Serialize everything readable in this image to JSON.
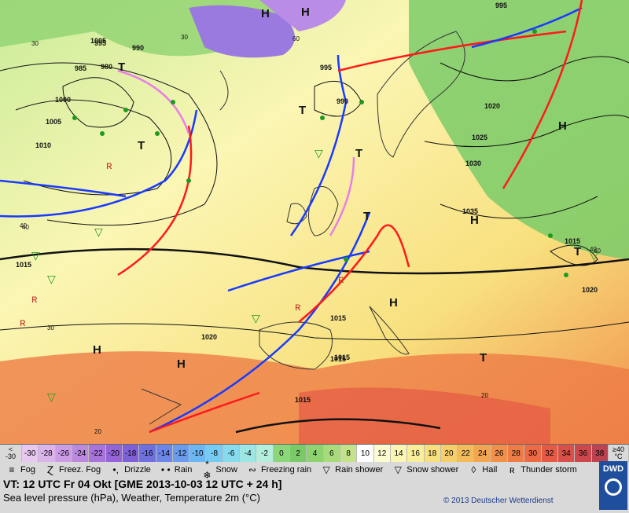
{
  "map": {
    "pressure_centers": [
      {
        "type": "H",
        "label": "H"
      },
      {
        "type": "H",
        "label": "H"
      },
      {
        "type": "H",
        "label": "H"
      },
      {
        "type": "H",
        "label": "H"
      },
      {
        "type": "H",
        "label": "H"
      },
      {
        "type": "H",
        "label": "H"
      },
      {
        "type": "H",
        "label": "H"
      },
      {
        "type": "T",
        "label": "T"
      },
      {
        "type": "T",
        "label": "T"
      },
      {
        "type": "T",
        "label": "T"
      },
      {
        "type": "T",
        "label": "T"
      },
      {
        "type": "T",
        "label": "T"
      },
      {
        "type": "T",
        "label": "T"
      },
      {
        "type": "T",
        "label": "T"
      }
    ],
    "isobar_labels": [
      "995",
      "990",
      "985",
      "980",
      "1000",
      "1005",
      "1010",
      "995",
      "990",
      "995",
      "1020",
      "1025",
      "1030",
      "1035",
      "1015",
      "1020",
      "1020",
      "1015",
      "1015",
      "1015",
      "1015",
      "1015",
      "1005"
    ],
    "temperature_labels": [
      "30",
      "40",
      "40",
      "30",
      "20",
      "20",
      "40",
      "40",
      "30",
      "60"
    ],
    "pressure_center_values": [
      "985",
      "980",
      "990",
      "995"
    ]
  },
  "scale": {
    "first": [
      "<",
      "-30"
    ],
    "values": [
      "-30",
      "-28",
      "-26",
      "-24",
      "-22",
      "-20",
      "-18",
      "-16",
      "-14",
      "-12",
      "-10",
      "-8",
      "-6",
      "-4",
      "-2",
      "0",
      "2",
      "4",
      "6",
      "8",
      "10",
      "12",
      "14",
      "16",
      "18",
      "20",
      "22",
      "24",
      "26",
      "28",
      "30",
      "32",
      "34",
      "36",
      "38"
    ],
    "last": [
      "≥40",
      "°C"
    ],
    "colors": [
      "#e8c8f0",
      "#dcb4ec",
      "#cc9ce6",
      "#bc88e0",
      "#a874dc",
      "#9464d8",
      "#8060d8",
      "#6f6fe0",
      "#6c85e8",
      "#6a9cee",
      "#6cb6f2",
      "#74ccf2",
      "#86dcee",
      "#9ce6e4",
      "#b4eedc",
      "#8cd67a",
      "#7acb68",
      "#8fd370",
      "#a8db7c",
      "#c2e38a",
      "#fefefe",
      "#fcfcd0",
      "#fbf6b4",
      "#faee98",
      "#f8e07e",
      "#f6cf6a",
      "#f4bb5c",
      "#f2a652",
      "#f0904a",
      "#ee7c46",
      "#ec6a44",
      "#e45a44",
      "#d85048",
      "#cc484c",
      "#bd4250"
    ]
  },
  "legend": [
    {
      "icon": "fog-icon",
      "symbol": "≡",
      "label": "Fog"
    },
    {
      "icon": "freezing-fog-icon",
      "symbol": "Ɀ",
      "label": "Freez. Fog"
    },
    {
      "icon": "drizzle-icon",
      "symbol": "•,",
      "label": "Drizzle"
    },
    {
      "icon": "rain-icon",
      "symbol": "• •",
      "label": "Rain"
    },
    {
      "icon": "snow-icon",
      "symbol": "* ❄",
      "label": "Snow"
    },
    {
      "icon": "freezing-rain-icon",
      "symbol": "∾",
      "label": "Freezing rain"
    },
    {
      "icon": "rain-shower-icon",
      "symbol": "▽",
      "label": "Rain shower"
    },
    {
      "icon": "snow-shower-icon",
      "symbol": "▽",
      "label": "Snow shower"
    },
    {
      "icon": "hail-icon",
      "symbol": "◊",
      "label": "Hail"
    },
    {
      "icon": "thunderstorm-icon",
      "symbol": "ʀ",
      "label": "Thunder storm"
    }
  ],
  "info": {
    "line1": "VT: 12 UTC Fr  04 Okt [GME 2013-10-03  12 UTC + 24 h]",
    "line2": "Sea level pressure (hPa), Weather, Temperature 2m (°C)",
    "copyright": "© 2013 Deutscher Wetterdienst",
    "logo": "DWD"
  },
  "colors": {
    "warm_front": "#ff1a1a",
    "cold_front": "#1a3aff",
    "occluded_front": "#e87ee8",
    "isobar": "#111111"
  }
}
